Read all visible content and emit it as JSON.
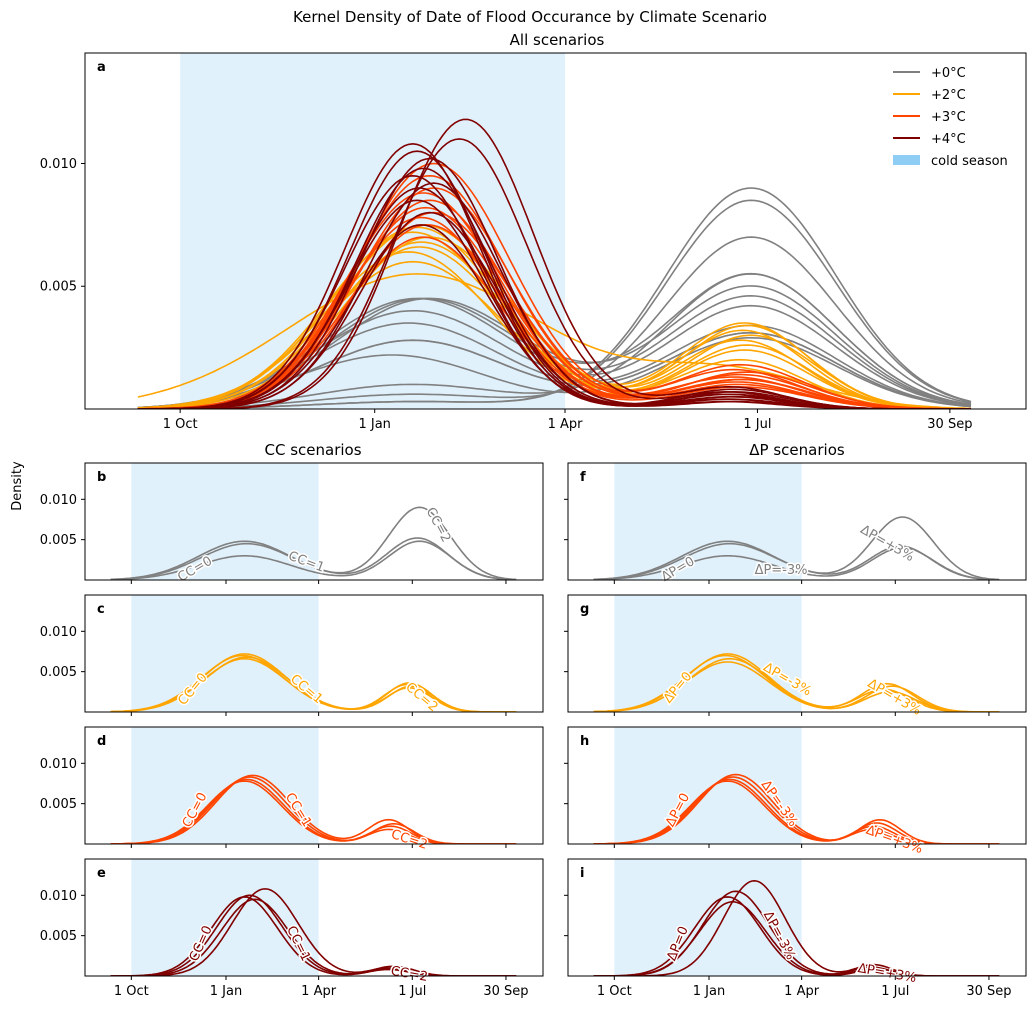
{
  "figure": {
    "suptitle": "Kernel Density of Date of Flood Occurance by Climate Scenario",
    "ylabel": "Density"
  },
  "chart_data": {
    "type": "line",
    "x_unit": "day of water year (0 = 1 Oct)",
    "x_ticks": [
      {
        "value": 0,
        "label": "1 Oct"
      },
      {
        "value": 92,
        "label": "1 Jan"
      },
      {
        "value": 182,
        "label": "1 Apr"
      },
      {
        "value": 273,
        "label": "1 Jul"
      },
      {
        "value": 364,
        "label": "30 Sep"
      }
    ],
    "cold_season": {
      "label": "cold season",
      "color": "#8ecef5",
      "start": 0,
      "end": 182
    },
    "scenario_colors": {
      "+0": "#808080",
      "+2": "#ffa500",
      "+3": "#ff4500",
      "+4": "#800000"
    },
    "legend": {
      "position": "top-right",
      "entries": [
        {
          "label": "+0°C",
          "key": "+0"
        },
        {
          "label": "+2°C",
          "key": "+2"
        },
        {
          "label": "+3°C",
          "key": "+3"
        },
        {
          "label": "+4°C",
          "key": "+4"
        },
        {
          "label": "cold season",
          "key": "cold"
        }
      ]
    },
    "panel_a": {
      "letter": "a",
      "title": "All scenarios",
      "xlim": [
        -45,
        400
      ],
      "ylim": [
        0,
        0.0145
      ],
      "yticks": [
        {
          "value": 0.005,
          "label": "0.005"
        },
        {
          "value": 0.01,
          "label": "0.010"
        }
      ],
      "series": [
        {
          "name": "+0°C",
          "key": "+0",
          "curves": [
            [
              0.0003,
              110,
              45,
              0.009,
              270,
              40
            ],
            [
              0.0003,
              110,
              45,
              0.0085,
              270,
              40
            ],
            [
              0.0006,
              110,
              45,
              0.007,
              270,
              40
            ],
            [
              0.001,
              110,
              45,
              0.0055,
              270,
              40
            ],
            [
              0.0045,
              115,
              45,
              0.0055,
              270,
              40
            ],
            [
              0.0045,
              118,
              45,
              0.005,
              270,
              40
            ],
            [
              0.0045,
              112,
              45,
              0.0046,
              270,
              40
            ],
            [
              0.004,
              110,
              45,
              0.0042,
              270,
              40
            ],
            [
              0.0035,
              108,
              45,
              0.0034,
              270,
              40
            ],
            [
              0.0028,
              110,
              45,
              0.0031,
              270,
              40
            ],
            [
              0.0028,
              110,
              45,
              0.0031,
              270,
              40
            ],
            [
              0.0022,
              100,
              45,
              0.0029,
              270,
              40
            ]
          ]
        },
        {
          "name": "+2°C",
          "key": "+2",
          "curves": [
            [
              0.0075,
              115,
              40,
              0.0035,
              267,
              30
            ],
            [
              0.0074,
              112,
              40,
              0.0034,
              268,
              30
            ],
            [
              0.0072,
              110,
              40,
              0.0032,
              266,
              30
            ],
            [
              0.007,
              118,
              40,
              0.003,
              270,
              30
            ],
            [
              0.0068,
              114,
              40,
              0.0028,
              265,
              30
            ],
            [
              0.0066,
              113,
              40,
              0.0026,
              268,
              30
            ],
            [
              0.0064,
              108,
              40,
              0.0024,
              267,
              30
            ],
            [
              0.006,
              110,
              42,
              0.002,
              265,
              30
            ],
            [
              0.0055,
              112,
              60,
              0.0015,
              260,
              40
            ]
          ]
        },
        {
          "name": "+3°C",
          "key": "+3",
          "curves": [
            [
              0.01,
              120,
              36,
              0.0018,
              265,
              30
            ],
            [
              0.0095,
              118,
              36,
              0.0016,
              262,
              30
            ],
            [
              0.009,
              120,
              36,
              0.0015,
              268,
              30
            ],
            [
              0.0088,
              115,
              36,
              0.0014,
              265,
              30
            ],
            [
              0.0085,
              118,
              36,
              0.0013,
              262,
              30
            ],
            [
              0.0082,
              116,
              36,
              0.0012,
              266,
              30
            ],
            [
              0.008,
              120,
              36,
              0.0012,
              265,
              30
            ],
            [
              0.0078,
              114,
              36,
              0.0011,
              263,
              30
            ],
            [
              0.0075,
              117,
              36,
              0.001,
              264,
              30
            ],
            [
              0.007,
              115,
              36,
              0.0009,
              265,
              30
            ]
          ]
        },
        {
          "name": "+4°C",
          "key": "+4",
          "curves": [
            [
              0.0118,
              135,
              32,
              0.0009,
              260,
              25
            ],
            [
              0.011,
              132,
              32,
              0.0008,
              262,
              25
            ],
            [
              0.0108,
              110,
              32,
              0.0007,
              258,
              25
            ],
            [
              0.0105,
              112,
              32,
              0.0007,
              262,
              25
            ],
            [
              0.0102,
              118,
              32,
              0.0006,
              260,
              25
            ],
            [
              0.0098,
              115,
              32,
              0.0006,
              258,
              25
            ],
            [
              0.0095,
              110,
              32,
              0.0005,
              262,
              25
            ],
            [
              0.0092,
              120,
              32,
              0.0005,
              260,
              25
            ],
            [
              0.009,
              113,
              32,
              0.0004,
              258,
              25
            ],
            [
              0.0085,
              112,
              32,
              0.0004,
              260,
              25
            ],
            [
              0.008,
              118,
              32,
              0.0003,
              262,
              25
            ],
            [
              0.0075,
              114,
              32,
              0.0003,
              258,
              25
            ]
          ]
        }
      ]
    },
    "small_panels": {
      "xlim": [
        -45,
        400
      ],
      "ylim": [
        0,
        0.0145
      ],
      "yticks": [
        {
          "value": 0.005,
          "label": "0.005"
        },
        {
          "value": 0.01,
          "label": "0.010"
        }
      ],
      "column_titles": {
        "left": "CC scenarios",
        "right": "ΔP scenarios"
      },
      "panels": [
        {
          "letter": "b",
          "key": "+0",
          "col": 0,
          "row": 0,
          "curves": [
            [
              0.0048,
              110,
              45,
              0.009,
              280,
              30
            ],
            [
              0.0045,
              112,
              45,
              0.0052,
              278,
              30
            ],
            [
              0.003,
              110,
              45,
              0.0048,
              280,
              30
            ]
          ],
          "labels": [
            {
              "text": "CC=0",
              "x": 62,
              "y": 0.0013,
              "angle": -30
            },
            {
              "text": "CC=1",
              "x": 170,
              "y": 0.0022,
              "angle": 20
            },
            {
              "text": "CC=2",
              "x": 298,
              "y": 0.0068,
              "angle": 62
            }
          ]
        },
        {
          "letter": "c",
          "key": "+2",
          "col": 0,
          "row": 1,
          "curves": [
            [
              0.0072,
              110,
              40,
              0.0036,
              270,
              22
            ],
            [
              0.007,
              108,
              40,
              0.0034,
              268,
              22
            ],
            [
              0.0068,
              112,
              40,
              0.0032,
              272,
              22
            ],
            [
              0.0066,
              110,
              40,
              0.003,
              270,
              22
            ]
          ],
          "labels": [
            {
              "text": "CC=0",
              "x": 60,
              "y": 0.0028,
              "angle": -50
            },
            {
              "text": "CC=1",
              "x": 170,
              "y": 0.0028,
              "angle": 40
            },
            {
              "text": "CC=2",
              "x": 282,
              "y": 0.0018,
              "angle": 40
            }
          ]
        },
        {
          "letter": "d",
          "key": "+3",
          "col": 0,
          "row": 2,
          "curves": [
            [
              0.0085,
              118,
              36,
              0.003,
              250,
              20
            ],
            [
              0.0083,
              115,
              36,
              0.0025,
              255,
              20
            ],
            [
              0.008,
              112,
              36,
              0.0022,
              252,
              20
            ],
            [
              0.0078,
              110,
              36,
              0.0018,
              250,
              20
            ]
          ],
          "labels": [
            {
              "text": "CC=0",
              "x": 62,
              "y": 0.0042,
              "angle": -62
            },
            {
              "text": "CC=1",
              "x": 162,
              "y": 0.0042,
              "angle": 58
            },
            {
              "text": "CC=2",
              "x": 270,
              "y": 0.0005,
              "angle": 18
            }
          ]
        },
        {
          "letter": "e",
          "key": "+4",
          "col": 0,
          "row": 3,
          "curves": [
            [
              0.0108,
              130,
              32,
              0.0012,
              255,
              20
            ],
            [
              0.01,
              115,
              32,
              0.001,
              250,
              20
            ],
            [
              0.0098,
              110,
              32,
              0.0009,
              252,
              20
            ],
            [
              0.0095,
              120,
              32,
              0.0008,
              250,
              20
            ]
          ],
          "labels": [
            {
              "text": "CC=0",
              "x": 68,
              "y": 0.004,
              "angle": -66
            },
            {
              "text": "CC=1",
              "x": 162,
              "y": 0.004,
              "angle": 64
            },
            {
              "text": "CC=2",
              "x": 270,
              "y": 0.0002,
              "angle": 10
            }
          ]
        },
        {
          "letter": "f",
          "key": "+0",
          "col": 1,
          "row": 0,
          "curves": [
            [
              0.0048,
              110,
              45,
              0.0078,
              280,
              30
            ],
            [
              0.0045,
              112,
              45,
              0.0042,
              278,
              30
            ],
            [
              0.003,
              110,
              45,
              0.004,
              280,
              30
            ]
          ],
          "labels": [
            {
              "text": "ΔP=0",
              "x": 62,
              "y": 0.0013,
              "angle": -30
            },
            {
              "text": "ΔP=-3%",
              "x": 162,
              "y": 0.0012,
              "angle": 0
            },
            {
              "text": "ΔP=+3%",
              "x": 265,
              "y": 0.0045,
              "angle": 30
            }
          ]
        },
        {
          "letter": "g",
          "key": "+2",
          "col": 1,
          "row": 1,
          "curves": [
            [
              0.0072,
              110,
              40,
              0.0035,
              265,
              25
            ],
            [
              0.007,
              108,
              40,
              0.0032,
              270,
              25
            ],
            [
              0.0066,
              112,
              40,
              0.0028,
              262,
              25
            ],
            [
              0.0062,
              110,
              40,
              0.0025,
              268,
              25
            ]
          ],
          "labels": [
            {
              "text": "ΔP=0",
              "x": 62,
              "y": 0.003,
              "angle": -50
            },
            {
              "text": "ΔP=-3%",
              "x": 168,
              "y": 0.004,
              "angle": 30
            },
            {
              "text": "ΔP=+3%",
              "x": 272,
              "y": 0.0018,
              "angle": 30
            }
          ]
        },
        {
          "letter": "h",
          "key": "+3",
          "col": 1,
          "row": 2,
          "curves": [
            [
              0.0086,
              118,
              36,
              0.003,
              258,
              20
            ],
            [
              0.0083,
              115,
              36,
              0.0026,
              255,
              20
            ],
            [
              0.008,
              112,
              36,
              0.0022,
              252,
              20
            ],
            [
              0.0078,
              110,
              36,
              0.0018,
              250,
              20
            ]
          ],
          "labels": [
            {
              "text": "ΔP=0",
              "x": 62,
              "y": 0.0042,
              "angle": -62
            },
            {
              "text": "ΔP=-3%",
              "x": 160,
              "y": 0.005,
              "angle": 55
            },
            {
              "text": "ΔP=+3%",
              "x": 272,
              "y": 0.0005,
              "angle": 20
            }
          ]
        },
        {
          "letter": "i",
          "key": "+4",
          "col": 1,
          "row": 3,
          "curves": [
            [
              0.0118,
              136,
              30,
              0.0014,
              252,
              18
            ],
            [
              0.0105,
              118,
              32,
              0.0011,
              250,
              18
            ],
            [
              0.0098,
              110,
              32,
              0.0009,
              255,
              18
            ],
            [
              0.0092,
              115,
              32,
              0.0008,
              250,
              18
            ]
          ],
          "labels": [
            {
              "text": "ΔP=0",
              "x": 62,
              "y": 0.004,
              "angle": -68
            },
            {
              "text": "ΔP=-3%",
              "x": 160,
              "y": 0.005,
              "angle": 62
            },
            {
              "text": "ΔP=+3%",
              "x": 265,
              "y": 0.0003,
              "angle": 10
            }
          ]
        }
      ]
    }
  }
}
